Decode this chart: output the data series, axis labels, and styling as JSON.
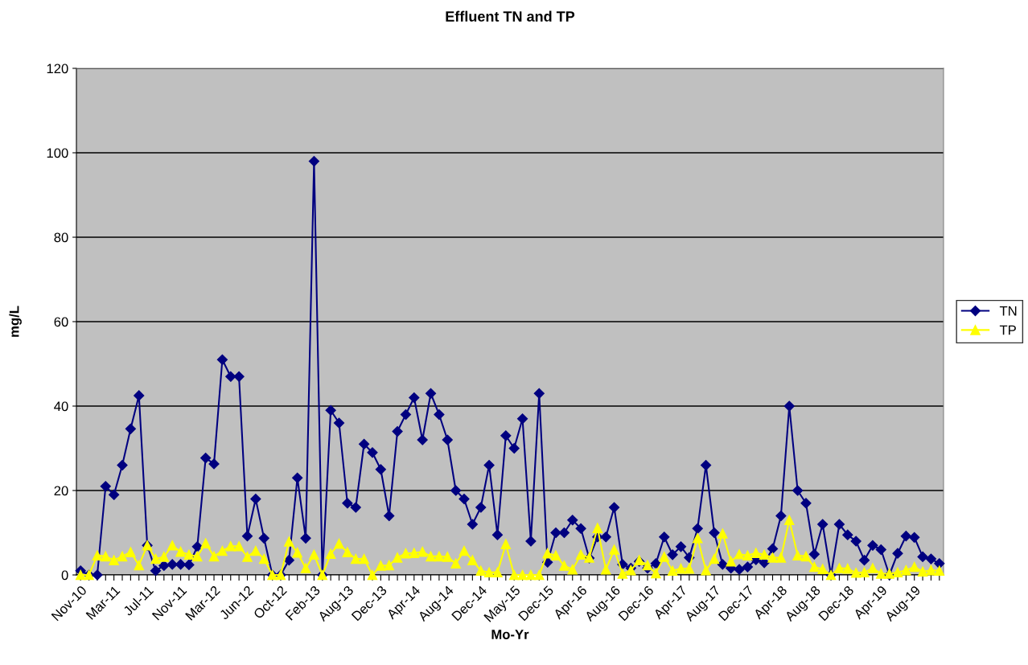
{
  "chart_data": {
    "type": "line",
    "title": "Effluent TN and TP",
    "xlabel": "Mo-Yr",
    "ylabel": "mg/L",
    "categories": [
      "Nov-10",
      null,
      null,
      null,
      "Mar-11",
      null,
      null,
      null,
      "Jul-11",
      null,
      null,
      null,
      "Nov-11",
      null,
      null,
      null,
      "Mar-12",
      null,
      null,
      null,
      "Jun-12",
      null,
      null,
      null,
      "Oct-12",
      null,
      null,
      null,
      "Feb-13",
      null,
      null,
      null,
      "Aug-13",
      null,
      null,
      null,
      "Dec-13",
      null,
      null,
      null,
      "Apr-14",
      null,
      null,
      null,
      "Aug-14",
      null,
      null,
      null,
      "Dec-14",
      null,
      null,
      null,
      "May-15",
      null,
      null,
      null,
      "Dec-15",
      null,
      null,
      null,
      "Apr-16",
      null,
      null,
      null,
      "Aug-16",
      null,
      null,
      null,
      "Dec-16",
      null,
      null,
      null,
      "Apr-17",
      null,
      null,
      null,
      "Aug-17",
      null,
      null,
      null,
      "Dec-17",
      null,
      null,
      null,
      "Apr-18",
      null,
      null,
      null,
      "Aug-18",
      null,
      null,
      null,
      "Dec-18",
      null,
      null,
      null,
      "Apr-19",
      null,
      null,
      null,
      "Aug-19",
      null,
      null,
      null
    ],
    "series": [
      {
        "name": "TN",
        "color": "#000080",
        "marker": "diamond",
        "values": [
          1,
          0,
          0,
          21,
          19,
          26,
          34.6,
          42.5,
          7,
          1,
          2.2,
          2.5,
          2.5,
          2.4,
          6.7,
          27.7,
          26.3,
          51,
          47,
          47,
          9.2,
          18,
          8.7,
          0,
          0,
          3.5,
          23,
          8.7,
          98,
          0,
          39,
          36,
          17,
          16,
          31,
          29,
          25,
          14,
          34,
          38,
          42,
          32,
          43,
          38,
          32,
          20,
          18,
          12,
          16,
          26,
          9.5,
          33,
          30,
          37,
          8,
          43,
          3,
          10,
          10,
          13,
          11,
          4,
          9,
          9,
          16,
          2.5,
          1.6,
          3.2,
          1.6,
          2.7,
          9,
          4.8,
          6.7,
          4.1,
          11,
          26,
          10,
          2.5,
          1.6,
          1.3,
          1.9,
          3.6,
          2.9,
          6.2,
          14,
          40,
          20,
          17,
          4.9,
          12,
          0,
          12,
          9.5,
          8,
          3.5,
          7,
          6,
          0,
          5.1,
          9.2,
          8.9,
          4.3,
          3.8,
          2.7
        ]
      },
      {
        "name": "TP",
        "color": "#ffff00",
        "marker": "triangle",
        "values": [
          0,
          0,
          4.6,
          4.4,
          3.5,
          4.4,
          5.4,
          2.3,
          7,
          3.8,
          4.3,
          7,
          5.5,
          4.8,
          4.4,
          7.5,
          4.4,
          5.7,
          6.8,
          6.8,
          4.3,
          5.7,
          3.8,
          0,
          0,
          7.9,
          5.3,
          1.6,
          4.8,
          0,
          5,
          7.4,
          5.4,
          3.8,
          3.8,
          0,
          2.2,
          2.3,
          4.1,
          5.1,
          5.2,
          5.5,
          4.4,
          4.4,
          4.3,
          2.7,
          5.7,
          3.5,
          1,
          0.6,
          0.6,
          7.3,
          0,
          0,
          0,
          0,
          5.1,
          4.6,
          2.2,
          1.3,
          4.8,
          4.1,
          11.1,
          1.3,
          6,
          0.3,
          1.1,
          3.5,
          2.3,
          0.4,
          4.3,
          1,
          1.5,
          1.5,
          8.7,
          1.1,
          3.8,
          9.8,
          3.2,
          4.9,
          4.6,
          5.2,
          4.8,
          4.1,
          4.1,
          13,
          4.6,
          4.4,
          1.9,
          1.4,
          0,
          1.6,
          1.5,
          0.5,
          0.6,
          1.6,
          0.3,
          0.3,
          0.6,
          1.1,
          1.9,
          0.8,
          1.1,
          1
        ]
      }
    ],
    "ylim": [
      0,
      120
    ],
    "yticks": [
      0,
      20,
      40,
      60,
      80,
      100,
      120
    ],
    "grid": "y",
    "legend": "right",
    "line_style": "solid"
  }
}
